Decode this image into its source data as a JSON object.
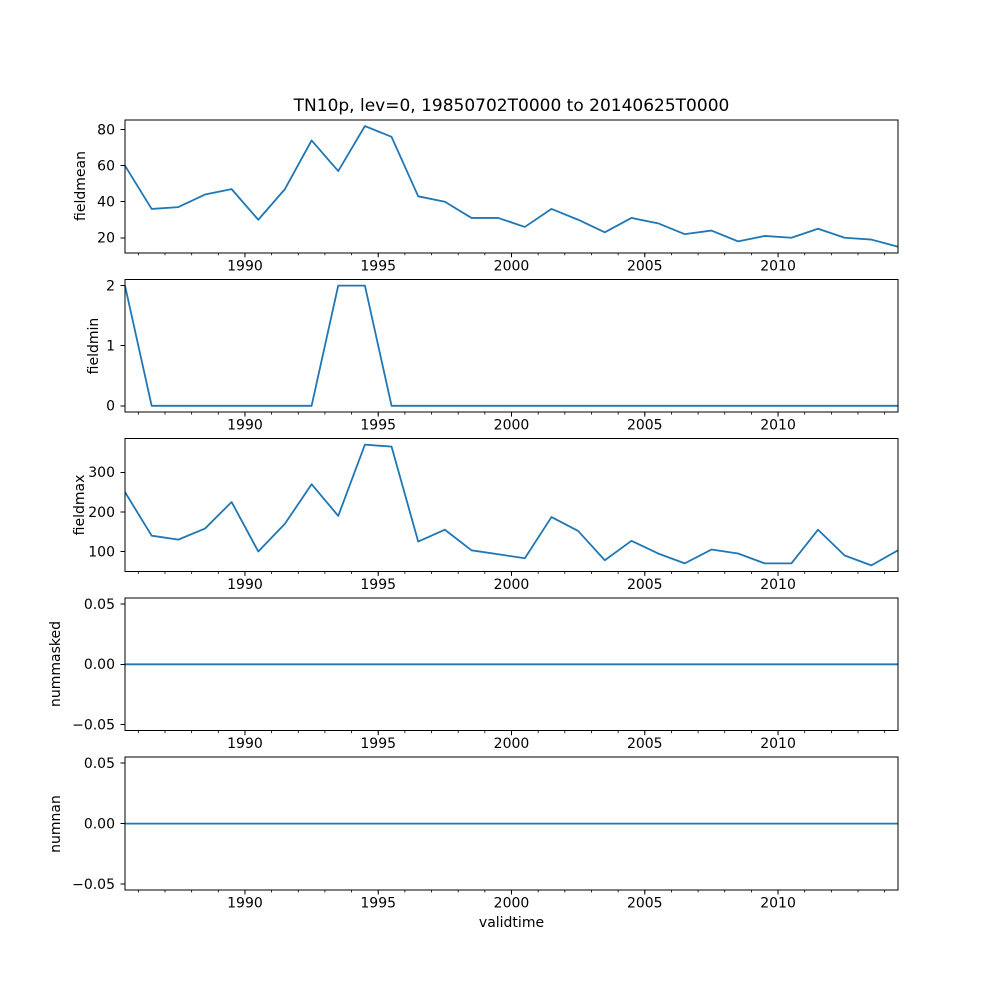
{
  "title": "TN10p, lev=0, 19850702T0000 to 20140625T0000",
  "xlabel": "validtime",
  "line_color": "#1f77b4",
  "chart_data": {
    "type": "line",
    "title": "TN10p, lev=0, 19850702T0000 to 20140625T0000",
    "xlabel": "validtime",
    "x_years": [
      1985,
      1986,
      1987,
      1988,
      1989,
      1990,
      1991,
      1992,
      1993,
      1994,
      1995,
      1996,
      1997,
      1998,
      1999,
      2000,
      2001,
      2002,
      2003,
      2004,
      2005,
      2006,
      2007,
      2008,
      2009,
      2010,
      2011,
      2012,
      2013,
      2014
    ],
    "x_point_offset_years": 0.5,
    "xlim": [
      1985.5,
      2014.5
    ],
    "x_major_ticks": [
      1990,
      1995,
      2000,
      2005,
      2010
    ],
    "x_major_tick_labels": [
      "1990",
      "1995",
      "2000",
      "2005",
      "2010"
    ],
    "x_minor_tick_interval_years": 1,
    "grid": false,
    "legend": "none",
    "subplots": [
      {
        "ylabel": "fieldmean",
        "values": [
          60,
          36,
          37,
          44,
          47,
          30,
          47,
          74,
          57,
          82,
          76,
          43,
          40,
          31,
          31,
          26,
          36,
          30,
          23,
          31,
          28,
          22,
          24,
          18,
          21,
          20,
          25,
          20,
          19,
          15
        ],
        "yticks": [
          20,
          40,
          60,
          80
        ],
        "ytick_labels": [
          "20",
          "40",
          "60",
          "80"
        ],
        "ylim": [
          11.65,
          85.35
        ]
      },
      {
        "ylabel": "fieldmin",
        "values": [
          2,
          0,
          0,
          0,
          0,
          0,
          0,
          0,
          2,
          2,
          0,
          0,
          0,
          0,
          0,
          0,
          0,
          0,
          0,
          0,
          0,
          0,
          0,
          0,
          0,
          0,
          0,
          0,
          0,
          0
        ],
        "yticks": [
          0,
          1,
          2
        ],
        "ytick_labels": [
          "0",
          "1",
          "2"
        ],
        "ylim": [
          -0.105,
          2.105
        ]
      },
      {
        "ylabel": "fieldmax",
        "values": [
          250,
          140,
          130,
          158,
          225,
          100,
          170,
          270,
          190,
          370,
          365,
          125,
          155,
          103,
          93,
          83,
          187,
          152,
          78,
          127,
          95,
          70,
          105,
          95,
          70,
          70,
          155,
          90,
          65,
          103
        ],
        "yticks": [
          100,
          200,
          300
        ],
        "ytick_labels": [
          "100",
          "200",
          "300"
        ],
        "ylim": [
          49.75,
          385.25
        ]
      },
      {
        "ylabel": "nummasked",
        "values": [
          0,
          0,
          0,
          0,
          0,
          0,
          0,
          0,
          0,
          0,
          0,
          0,
          0,
          0,
          0,
          0,
          0,
          0,
          0,
          0,
          0,
          0,
          0,
          0,
          0,
          0,
          0,
          0,
          0,
          0
        ],
        "yticks": [
          -0.05,
          0,
          0.05
        ],
        "ytick_labels": [
          "−0.05",
          "0.00",
          "0.05"
        ],
        "ylim": [
          -0.055,
          0.055
        ]
      },
      {
        "ylabel": "numnan",
        "values": [
          0,
          0,
          0,
          0,
          0,
          0,
          0,
          0,
          0,
          0,
          0,
          0,
          0,
          0,
          0,
          0,
          0,
          0,
          0,
          0,
          0,
          0,
          0,
          0,
          0,
          0,
          0,
          0,
          0,
          0
        ],
        "yticks": [
          -0.05,
          0,
          0.05
        ],
        "ytick_labels": [
          "−0.05",
          "0.00",
          "0.05"
        ],
        "ylim": [
          -0.055,
          0.055
        ]
      }
    ]
  }
}
